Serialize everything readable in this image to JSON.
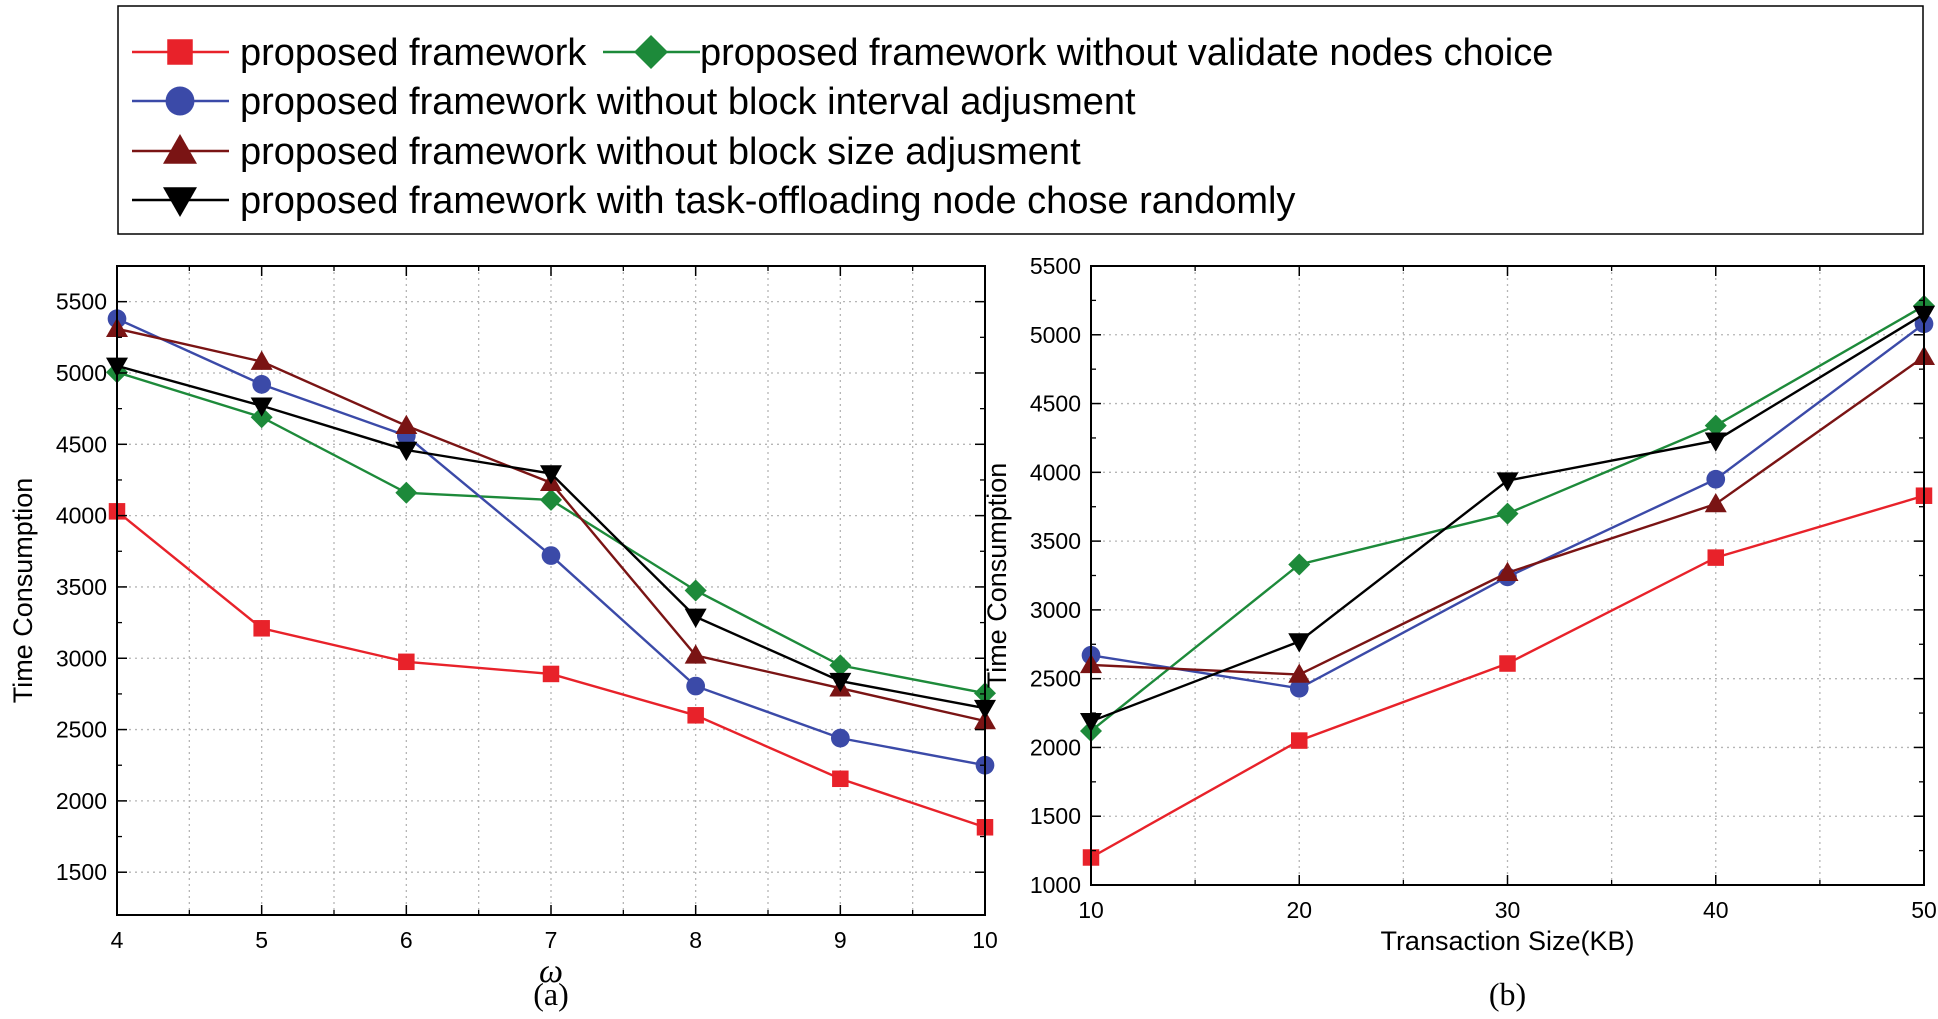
{
  "legend": {
    "entries": [
      {
        "id": "pf",
        "label": "proposed framework"
      },
      {
        "id": "vn",
        "label": "proposed framework without validate nodes choice"
      },
      {
        "id": "bi",
        "label": "proposed framework without  block interval adjusment"
      },
      {
        "id": "bs",
        "label": "proposed framework without  block size adjusment"
      },
      {
        "id": "rd",
        "label": "proposed framework with task-offloading node chose  randomly"
      }
    ]
  },
  "series_styles": {
    "pf": {
      "color": "#e8222a",
      "marker": "square"
    },
    "vn": {
      "color": "#1d8a3a",
      "marker": "diamond"
    },
    "bi": {
      "color": "#3b4aa8",
      "marker": "circle"
    },
    "bs": {
      "color": "#7a1414",
      "marker": "triangle-up"
    },
    "rd": {
      "color": "#000000",
      "marker": "triangle-down"
    }
  },
  "chart_data": [
    {
      "type": "line",
      "panel": "a",
      "caption": "(a)",
      "xlabel": "ω",
      "ylabel": "Time Consumption",
      "x": [
        4,
        5,
        6,
        7,
        8,
        9,
        10
      ],
      "xlim": [
        4,
        10
      ],
      "xticks": [
        4,
        5,
        6,
        7,
        8,
        9,
        10
      ],
      "ylim": [
        1200,
        5750
      ],
      "yticks": [
        1500,
        2000,
        2500,
        3000,
        3500,
        4000,
        4500,
        5000,
        5500
      ],
      "grid": true,
      "series": [
        {
          "id": "pf",
          "name": "proposed framework",
          "values": [
            4030,
            3210,
            2975,
            2890,
            2600,
            2155,
            1815
          ]
        },
        {
          "id": "vn",
          "name": "proposed framework without validate nodes choice",
          "values": [
            5005,
            4690,
            4160,
            4110,
            3475,
            2950,
            2755
          ]
        },
        {
          "id": "bi",
          "name": "proposed framework without  block interval adjusment",
          "values": [
            5380,
            4920,
            4560,
            3720,
            2805,
            2440,
            2250
          ]
        },
        {
          "id": "bs",
          "name": "proposed framework without  block size adjusment",
          "values": [
            5310,
            5080,
            4630,
            4230,
            3020,
            2790,
            2560
          ]
        },
        {
          "id": "rd",
          "name": "proposed framework with task-offloading node chose  randomly",
          "values": [
            5050,
            4770,
            4460,
            4295,
            3290,
            2840,
            2650
          ]
        }
      ]
    },
    {
      "type": "line",
      "panel": "b",
      "caption": "(b)",
      "xlabel": "Transaction Size(KB)",
      "ylabel": "Time Consumption",
      "x": [
        10,
        20,
        30,
        40,
        50
      ],
      "xlim": [
        10,
        50
      ],
      "xticks": [
        10,
        20,
        30,
        40,
        50
      ],
      "ylim": [
        1000,
        5500
      ],
      "yticks": [
        1000,
        1500,
        2000,
        2500,
        3000,
        3500,
        4000,
        4500,
        5000,
        5500
      ],
      "grid": true,
      "series": [
        {
          "id": "pf",
          "name": "proposed framework",
          "values": [
            1200,
            2050,
            2610,
            3380,
            3830
          ]
        },
        {
          "id": "vn",
          "name": "proposed framework without validate nodes choice",
          "values": [
            2120,
            3330,
            3700,
            4340,
            5210
          ]
        },
        {
          "id": "bi",
          "name": "proposed framework without  block interval adjusment",
          "values": [
            2670,
            2430,
            3240,
            3950,
            5080
          ]
        },
        {
          "id": "bs",
          "name": "proposed framework without  block size adjusment",
          "values": [
            2600,
            2530,
            3270,
            3770,
            4840
          ]
        },
        {
          "id": "rd",
          "name": "proposed framework with task-offloading node chose  randomly",
          "values": [
            2190,
            2770,
            3940,
            4230,
            5150
          ]
        }
      ]
    }
  ]
}
